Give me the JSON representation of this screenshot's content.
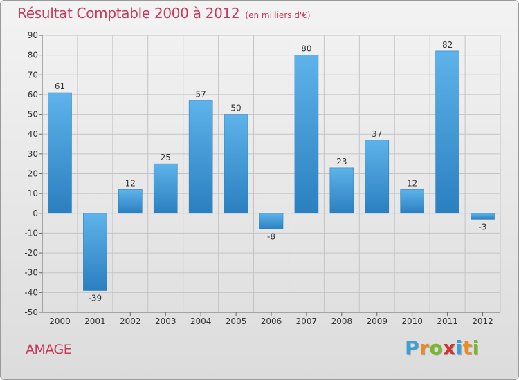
{
  "title": "Résultat Comptable 2000 à 2012",
  "subtitle": "(en milliers d'€)",
  "commune": "AMAGE",
  "brand": {
    "letters": [
      "P",
      "r",
      "o",
      "x",
      "i",
      "t",
      "i"
    ],
    "colors": [
      "#3aa0d8",
      "#f08a1c",
      "#79b929",
      "#d5332f",
      "#3aa0d8",
      "#f08a1c",
      "#79b929"
    ]
  },
  "colors": {
    "accent": "#c8385a",
    "bar_light": "#5eb3ea",
    "bar_dark": "#2a7fc0",
    "axis_text": "#333333"
  },
  "chart_data": {
    "type": "bar",
    "title": "Résultat Comptable 2000 à 2012",
    "xlabel": "",
    "ylabel": "",
    "categories": [
      "2000",
      "2001",
      "2002",
      "2003",
      "2004",
      "2005",
      "2006",
      "2007",
      "2008",
      "2009",
      "2010",
      "2011",
      "2012"
    ],
    "values": [
      61,
      -39,
      12,
      25,
      57,
      50,
      -8,
      80,
      23,
      37,
      12,
      82,
      -3
    ],
    "ylim": [
      -50,
      90
    ],
    "yticks": [
      90,
      80,
      70,
      60,
      50,
      40,
      30,
      20,
      10,
      0,
      -10,
      -20,
      -30,
      -40,
      -50
    ],
    "grid": true
  }
}
